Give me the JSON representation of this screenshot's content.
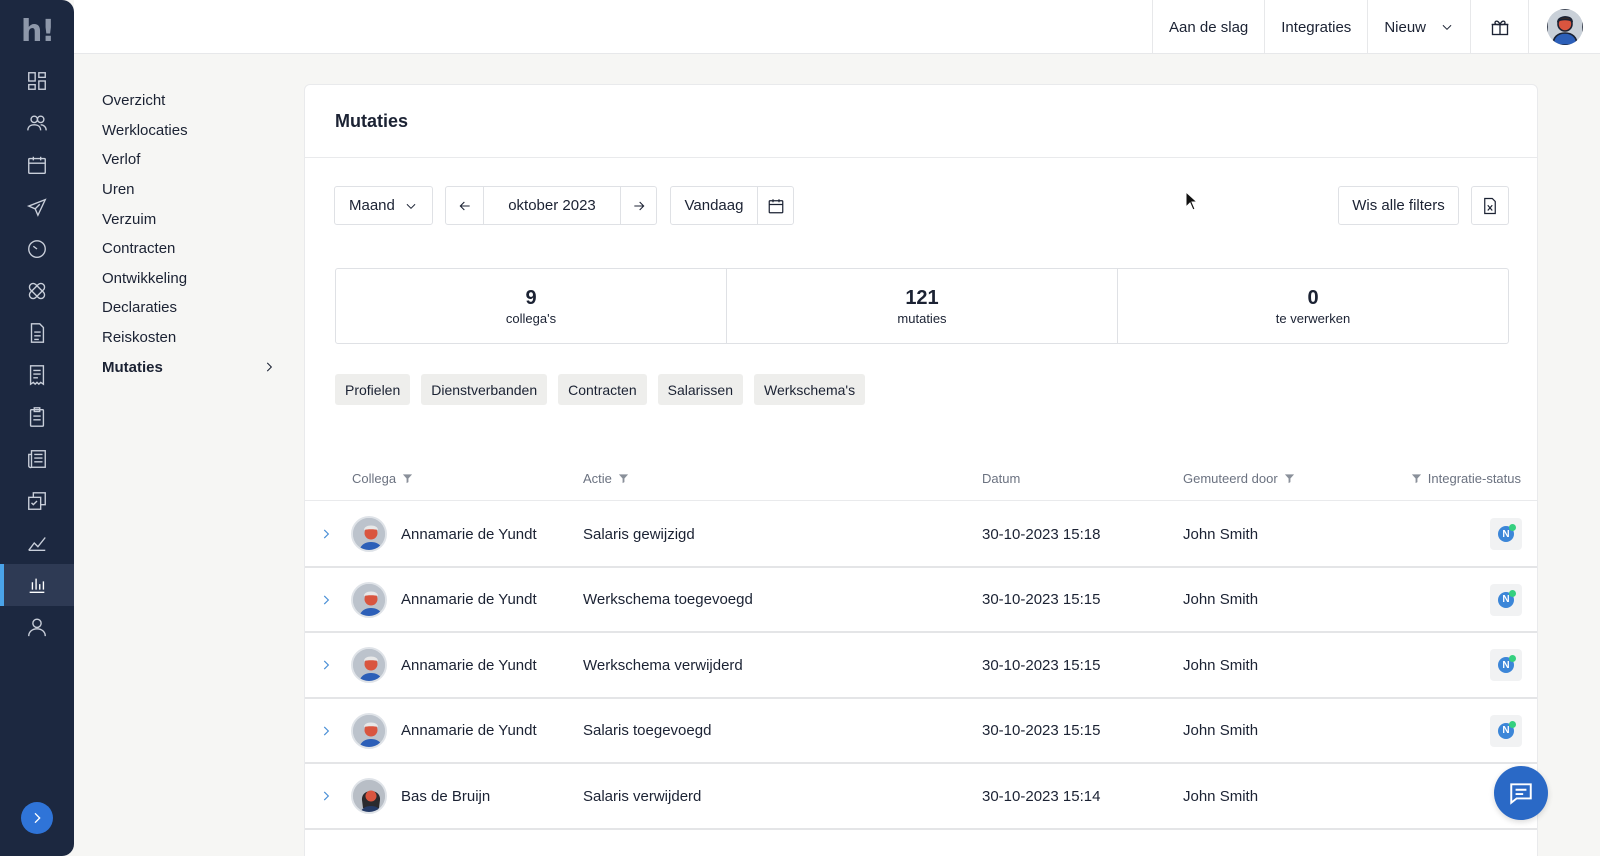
{
  "rail": {
    "logo": "h!",
    "items": [
      {
        "icon": "dashboard-icon"
      },
      {
        "icon": "people-icon"
      },
      {
        "icon": "calendar-icon"
      },
      {
        "icon": "airplane-icon"
      },
      {
        "icon": "clock-icon"
      },
      {
        "icon": "bandage-icon"
      },
      {
        "icon": "document-icon"
      },
      {
        "icon": "receipt-icon"
      },
      {
        "icon": "clipboard-icon"
      },
      {
        "icon": "newspaper-icon"
      },
      {
        "icon": "checklist-icon"
      },
      {
        "icon": "chart-line-icon"
      },
      {
        "icon": "bar-chart-icon",
        "active": true
      },
      {
        "icon": "user-icon"
      }
    ]
  },
  "topbar": {
    "get_started": "Aan de slag",
    "integrations": "Integraties",
    "new": "Nieuw"
  },
  "subnav": {
    "items": [
      {
        "label": "Overzicht"
      },
      {
        "label": "Werklocaties"
      },
      {
        "label": "Verlof"
      },
      {
        "label": "Uren"
      },
      {
        "label": "Verzuim"
      },
      {
        "label": "Contracten"
      },
      {
        "label": "Ontwikkeling"
      },
      {
        "label": "Declaraties"
      },
      {
        "label": "Reiskosten"
      },
      {
        "label": "Mutaties",
        "active": true
      }
    ]
  },
  "main": {
    "title": "Mutaties",
    "period_select": "Maand",
    "period_label": "oktober 2023",
    "today_button": "Vandaag",
    "clear_filters": "Wis alle filters",
    "stats": [
      {
        "value": "9",
        "label": "collega's"
      },
      {
        "value": "121",
        "label": "mutaties"
      },
      {
        "value": "0",
        "label": "te verwerken"
      }
    ],
    "chips": [
      "Profielen",
      "Dienstverbanden",
      "Contracten",
      "Salarissen",
      "Werkschema's"
    ],
    "columns": {
      "colleague": "Collega",
      "action": "Actie",
      "date": "Datum",
      "changed_by": "Gemuteerd door",
      "integration_status": "Integratie-status"
    },
    "rows": [
      {
        "colleague": "Annamarie de Yundt",
        "action": "Salaris gewijzigd",
        "date": "30-10-2023 15:18",
        "changed_by": "John Smith",
        "status_badge": "N"
      },
      {
        "colleague": "Annamarie de Yundt",
        "action": "Werkschema toegevoegd",
        "date": "30-10-2023 15:15",
        "changed_by": "John Smith",
        "status_badge": "N"
      },
      {
        "colleague": "Annamarie de Yundt",
        "action": "Werkschema verwijderd",
        "date": "30-10-2023 15:15",
        "changed_by": "John Smith",
        "status_badge": "N"
      },
      {
        "colleague": "Annamarie de Yundt",
        "action": "Salaris toegevoegd",
        "date": "30-10-2023 15:15",
        "changed_by": "John Smith",
        "status_badge": "N"
      },
      {
        "colleague": "Bas de Bruijn",
        "action": "Salaris verwijderd",
        "date": "30-10-2023 15:14",
        "changed_by": "John Smith",
        "status_badge": ""
      }
    ]
  },
  "colors": {
    "rail_bg": "#1c2840",
    "accent": "#2f74d8",
    "status_ok": "#35d07f"
  }
}
